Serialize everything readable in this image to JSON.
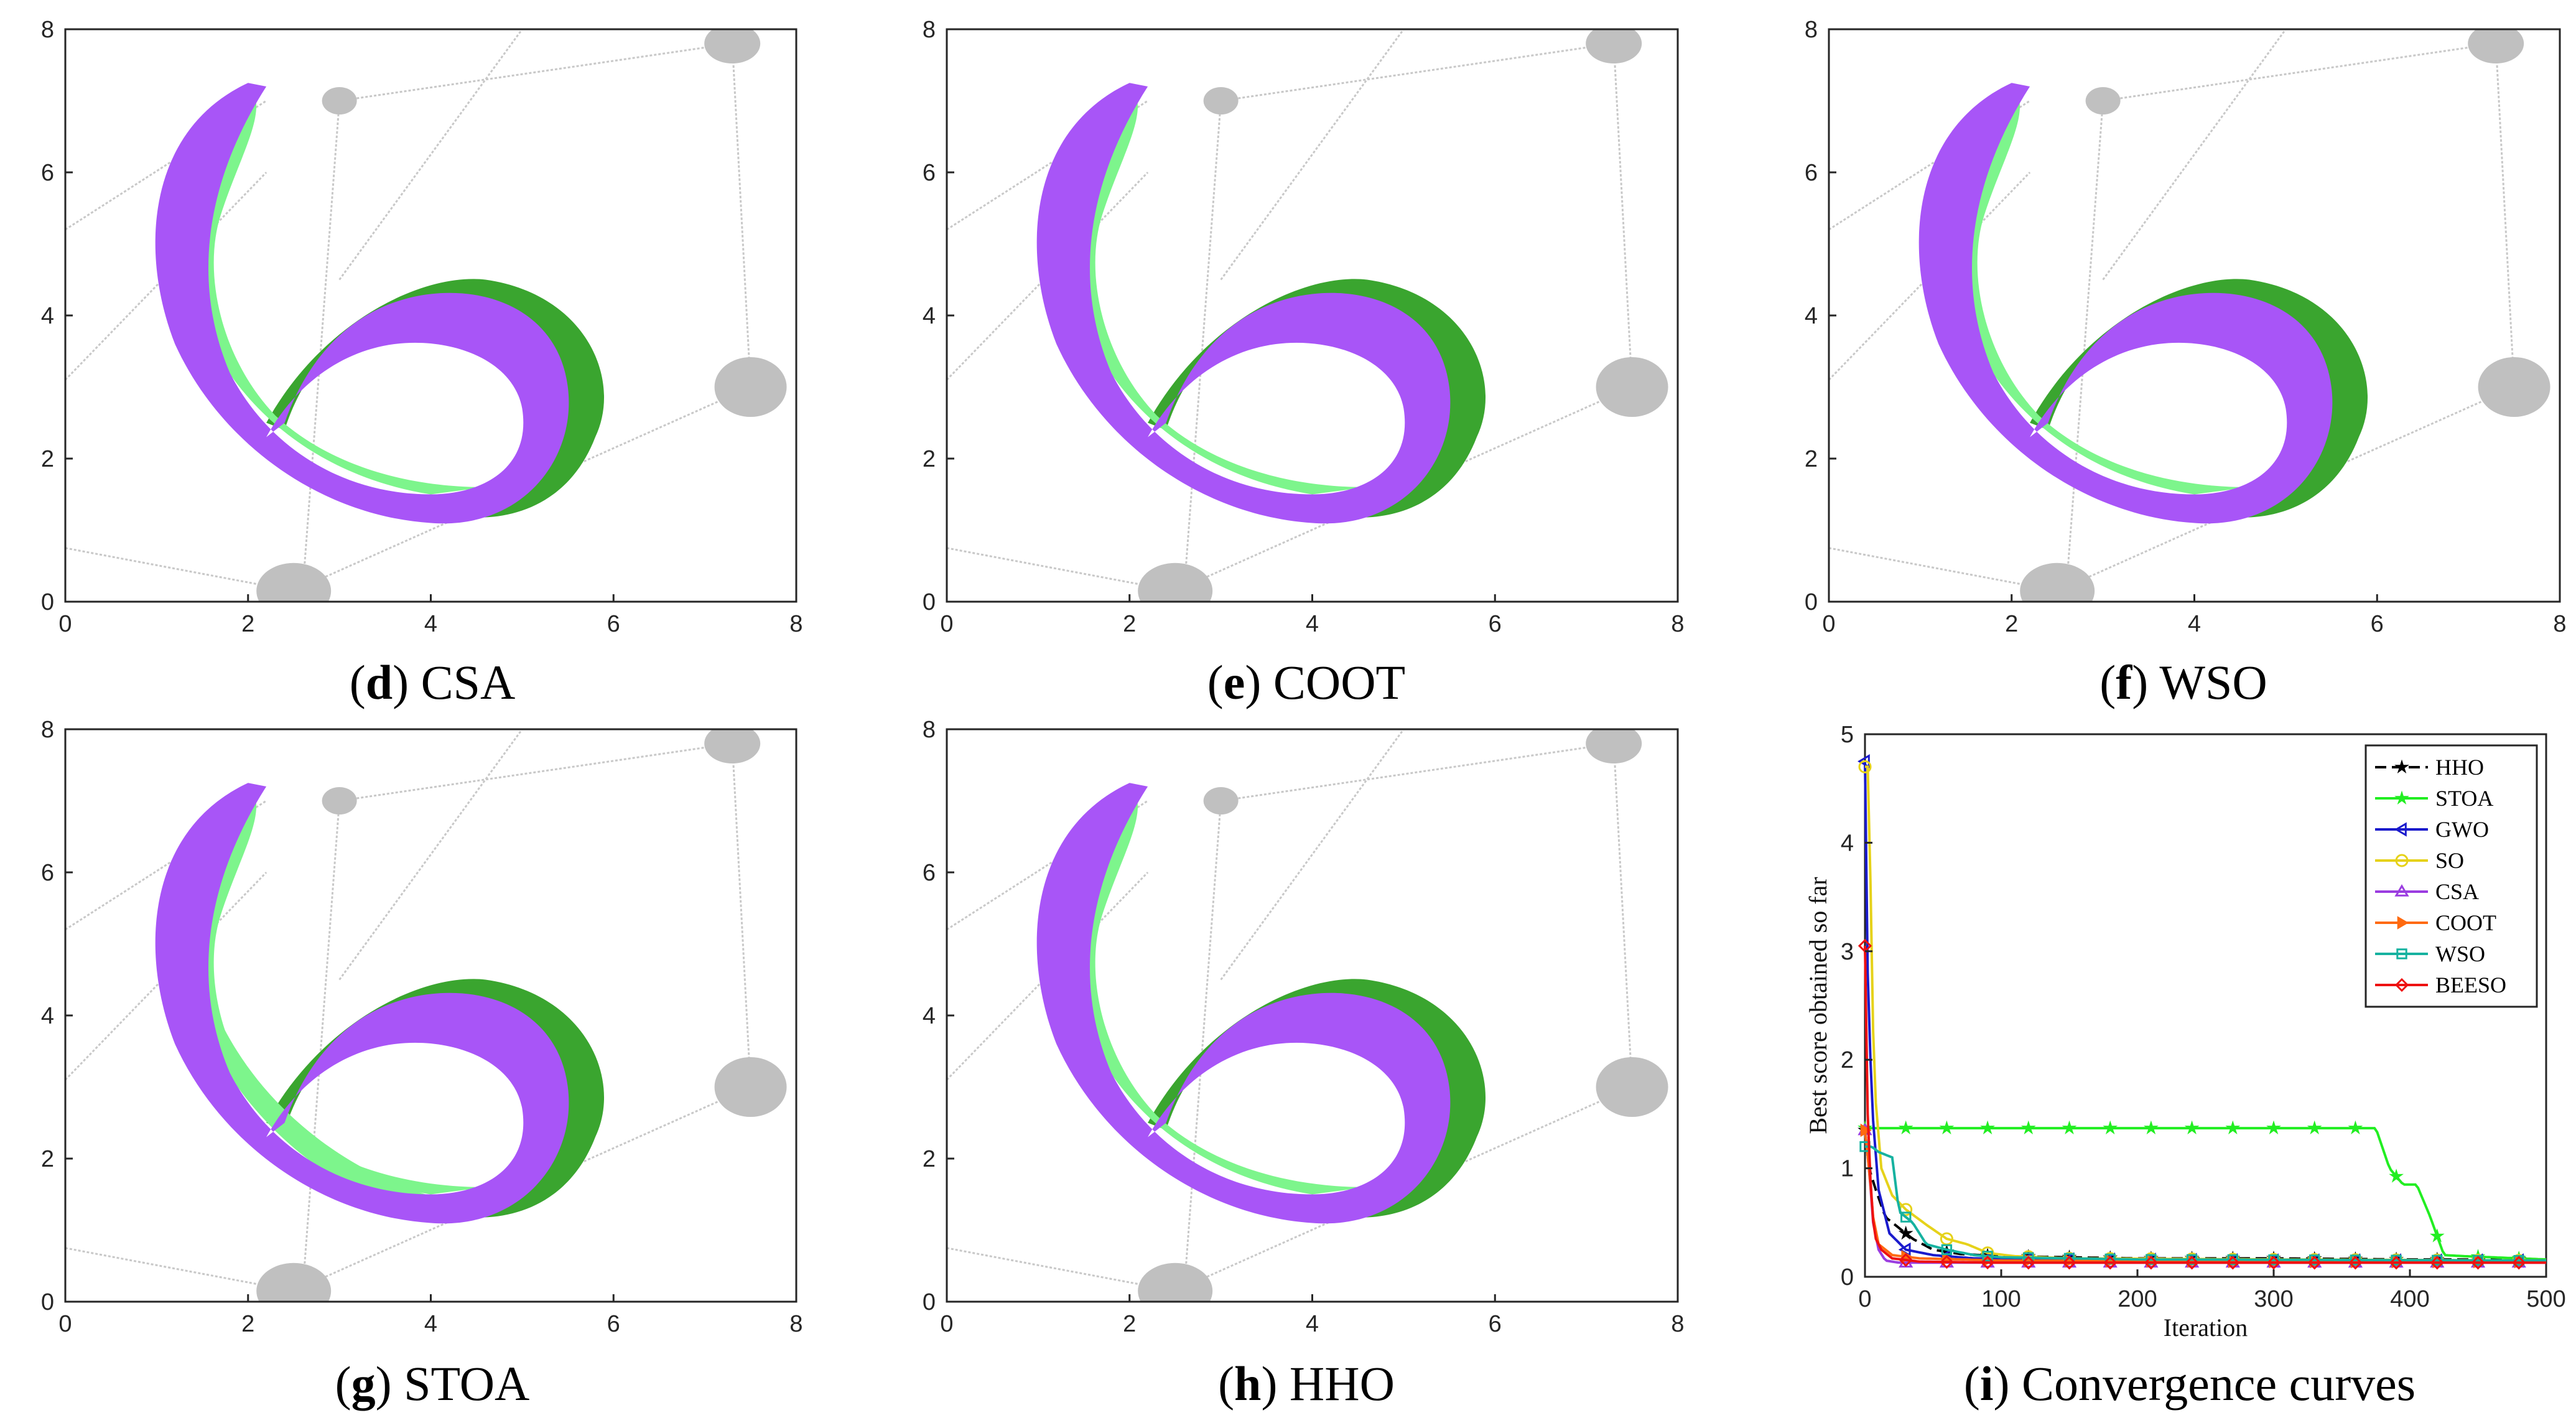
{
  "panels": [
    {
      "id": "d",
      "letter": "d",
      "label": "CSA"
    },
    {
      "id": "e",
      "letter": "e",
      "label": "COOT"
    },
    {
      "id": "f",
      "letter": "f",
      "label": "WSO"
    },
    {
      "id": "g",
      "letter": "g",
      "label": "STOA"
    },
    {
      "id": "h",
      "letter": "h",
      "label": "HHO"
    },
    {
      "id": "i",
      "letter": "i",
      "label": "Convergence curves"
    }
  ],
  "colors": {
    "optimized": "#a855f7",
    "target_light": "#7df58c",
    "target_dark": "#3aa52f",
    "obstacle": "#c0c0c0",
    "link": "#c8c8c8"
  },
  "chart_data": [
    {
      "type": "scatter",
      "panel": "d",
      "title": "CSA",
      "xlim": [
        0,
        8
      ],
      "ylim": [
        0,
        8
      ],
      "xticks": [
        0,
        2,
        4,
        6,
        8
      ],
      "yticks": [
        0,
        2,
        4,
        6,
        8
      ],
      "obstacles": [
        {
          "x": 3.0,
          "y": 7.0
        },
        {
          "x": 7.3,
          "y": 7.8
        },
        {
          "x": 7.5,
          "y": 3.0
        },
        {
          "x": 2.5,
          "y": 0.15
        }
      ]
    },
    {
      "type": "scatter",
      "panel": "e",
      "title": "COOT",
      "xlim": [
        0,
        8
      ],
      "ylim": [
        0,
        8
      ],
      "xticks": [
        0,
        2,
        4,
        6,
        8
      ],
      "yticks": [
        0,
        2,
        4,
        6,
        8
      ],
      "obstacles": [
        {
          "x": 3.0,
          "y": 7.0
        },
        {
          "x": 7.3,
          "y": 7.8
        },
        {
          "x": 7.5,
          "y": 3.0
        },
        {
          "x": 2.5,
          "y": 0.15
        }
      ]
    },
    {
      "type": "scatter",
      "panel": "f",
      "title": "WSO",
      "xlim": [
        0,
        8
      ],
      "ylim": [
        0,
        8
      ],
      "xticks": [
        0,
        2,
        4,
        6,
        8
      ],
      "yticks": [
        0,
        2,
        4,
        6,
        8
      ],
      "obstacles": [
        {
          "x": 3.0,
          "y": 7.0
        },
        {
          "x": 7.3,
          "y": 7.8
        },
        {
          "x": 7.5,
          "y": 3.0
        },
        {
          "x": 2.5,
          "y": 0.15
        }
      ]
    },
    {
      "type": "scatter",
      "panel": "g",
      "title": "STOA",
      "xlim": [
        0,
        8
      ],
      "ylim": [
        0,
        8
      ],
      "xticks": [
        0,
        2,
        4,
        6,
        8
      ],
      "yticks": [
        0,
        2,
        4,
        6,
        8
      ],
      "obstacles": [
        {
          "x": 3.0,
          "y": 7.0
        },
        {
          "x": 7.3,
          "y": 7.8
        },
        {
          "x": 7.5,
          "y": 3.0
        },
        {
          "x": 2.5,
          "y": 0.15
        }
      ]
    },
    {
      "type": "scatter",
      "panel": "h",
      "title": "HHO",
      "xlim": [
        0,
        8
      ],
      "ylim": [
        0,
        8
      ],
      "xticks": [
        0,
        2,
        4,
        6,
        8
      ],
      "yticks": [
        0,
        2,
        4,
        6,
        8
      ],
      "obstacles": [
        {
          "x": 3.0,
          "y": 7.0
        },
        {
          "x": 7.3,
          "y": 7.8
        },
        {
          "x": 7.5,
          "y": 3.0
        },
        {
          "x": 2.5,
          "y": 0.15
        }
      ]
    },
    {
      "type": "line",
      "panel": "i",
      "title": "Convergence curves",
      "xlabel": "Iteration",
      "ylabel": "Best score obtained so far",
      "xlim": [
        0,
        500
      ],
      "ylim": [
        0,
        5
      ],
      "xticks": [
        0,
        100,
        200,
        300,
        400,
        500
      ],
      "yticks": [
        0,
        1,
        2,
        3,
        4,
        5
      ],
      "series": [
        {
          "name": "HHO",
          "color": "#000000",
          "dash": "18,9",
          "marker": "star",
          "points": [
            [
              0,
              1.35
            ],
            [
              3,
              1.0
            ],
            [
              8,
              0.8
            ],
            [
              15,
              0.55
            ],
            [
              25,
              0.45
            ],
            [
              35,
              0.35
            ],
            [
              50,
              0.25
            ],
            [
              70,
              0.21
            ],
            [
              100,
              0.19
            ],
            [
              150,
              0.18
            ],
            [
              200,
              0.17
            ],
            [
              300,
              0.17
            ],
            [
              400,
              0.16
            ],
            [
              500,
              0.16
            ]
          ]
        },
        {
          "name": "STOA",
          "color": "#22ee22",
          "dash": "",
          "marker": "star",
          "points": [
            [
              0,
              1.37
            ],
            [
              20,
              1.37
            ],
            [
              100,
              1.37
            ],
            [
              200,
              1.37
            ],
            [
              300,
              1.37
            ],
            [
              375,
              1.37
            ],
            [
              385,
              1.0
            ],
            [
              395,
              0.85
            ],
            [
              405,
              0.85
            ],
            [
              415,
              0.55
            ],
            [
              425,
              0.2
            ],
            [
              440,
              0.19
            ],
            [
              500,
              0.16
            ]
          ]
        },
        {
          "name": "GWO",
          "color": "#1a1acc",
          "dash": "",
          "marker": "tri-left",
          "points": [
            [
              0,
              4.75
            ],
            [
              2,
              2.8
            ],
            [
              5,
              1.6
            ],
            [
              10,
              0.8
            ],
            [
              18,
              0.4
            ],
            [
              30,
              0.25
            ],
            [
              50,
              0.2
            ],
            [
              80,
              0.17
            ],
            [
              150,
              0.16
            ],
            [
              300,
              0.15
            ],
            [
              500,
              0.15
            ]
          ]
        },
        {
          "name": "SO",
          "color": "#e6d21a",
          "dash": "",
          "marker": "circle",
          "points": [
            [
              0,
              4.7
            ],
            [
              3,
              4.7
            ],
            [
              5,
              2.6
            ],
            [
              8,
              1.6
            ],
            [
              12,
              1.0
            ],
            [
              20,
              0.75
            ],
            [
              30,
              0.62
            ],
            [
              45,
              0.48
            ],
            [
              60,
              0.35
            ],
            [
              75,
              0.3
            ],
            [
              90,
              0.22
            ],
            [
              110,
              0.19
            ],
            [
              150,
              0.17
            ],
            [
              300,
              0.16
            ],
            [
              500,
              0.15
            ]
          ]
        },
        {
          "name": "CSA",
          "color": "#9b3de0",
          "dash": "",
          "marker": "tri-up",
          "points": [
            [
              0,
              1.35
            ],
            [
              3,
              1.0
            ],
            [
              6,
              0.5
            ],
            [
              10,
              0.25
            ],
            [
              15,
              0.15
            ],
            [
              25,
              0.13
            ],
            [
              100,
              0.13
            ],
            [
              500,
              0.13
            ]
          ]
        },
        {
          "name": "COOT",
          "color": "#ff6a10",
          "dash": "",
          "marker": "tri-right",
          "points": [
            [
              0,
              1.35
            ],
            [
              3,
              1.0
            ],
            [
              6,
              0.55
            ],
            [
              10,
              0.3
            ],
            [
              20,
              0.2
            ],
            [
              40,
              0.17
            ],
            [
              100,
              0.15
            ],
            [
              300,
              0.14
            ],
            [
              500,
              0.14
            ]
          ]
        },
        {
          "name": "WSO",
          "color": "#16b2a0",
          "dash": "",
          "marker": "square",
          "points": [
            [
              0,
              1.2
            ],
            [
              5,
              1.2
            ],
            [
              10,
              1.15
            ],
            [
              20,
              1.1
            ],
            [
              25,
              0.6
            ],
            [
              35,
              0.5
            ],
            [
              45,
              0.3
            ],
            [
              60,
              0.25
            ],
            [
              80,
              0.2
            ],
            [
              100,
              0.18
            ],
            [
              200,
              0.16
            ],
            [
              500,
              0.15
            ]
          ]
        },
        {
          "name": "BEESO",
          "color": "#ee1111",
          "dash": "",
          "marker": "diamond",
          "points": [
            [
              0,
              3.05
            ],
            [
              2,
              1.5
            ],
            [
              5,
              0.6
            ],
            [
              8,
              0.35
            ],
            [
              12,
              0.25
            ],
            [
              20,
              0.17
            ],
            [
              40,
              0.14
            ],
            [
              100,
              0.13
            ],
            [
              500,
              0.13
            ]
          ]
        }
      ]
    }
  ]
}
